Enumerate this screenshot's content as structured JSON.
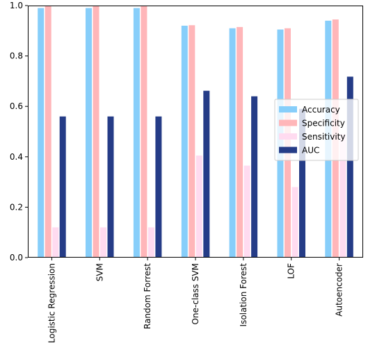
{
  "chart_data": {
    "type": "bar",
    "title": "",
    "xlabel": "",
    "ylabel": "",
    "ylim": [
      0,
      1.0
    ],
    "yticks": [
      "0.0",
      "0.2",
      "0.4",
      "0.6",
      "0.8",
      "1.0"
    ],
    "categories": [
      "Logistic Regression",
      "SVM",
      "Random Forrest",
      "One-class SVM",
      "Isolation Forest",
      "LOF",
      "Autoencoder"
    ],
    "series": [
      {
        "name": "Accuracy",
        "color": "#87cefa",
        "values": [
          0.99,
          0.99,
          0.99,
          0.92,
          0.91,
          0.905,
          0.94
        ]
      },
      {
        "name": "Specificity",
        "color": "#ffb6b9",
        "values": [
          1.0,
          1.0,
          1.0,
          0.922,
          0.915,
          0.91,
          0.945
        ]
      },
      {
        "name": "Sensitivity",
        "color": "#ffdbf0",
        "values": [
          0.12,
          0.12,
          0.12,
          0.405,
          0.365,
          0.28,
          0.49
        ]
      },
      {
        "name": "AUC",
        "color": "#253c87",
        "values": [
          0.56,
          0.56,
          0.56,
          0.662,
          0.64,
          0.59,
          0.718
        ]
      }
    ],
    "legend_position": "center-right",
    "grid": false
  }
}
